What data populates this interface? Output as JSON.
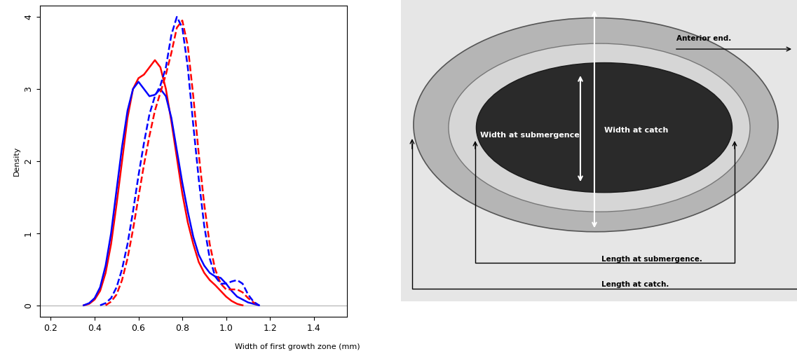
{
  "chart_data": {
    "type": "line",
    "x_label": "Width of first growth zone (mm)",
    "y_label": "Density",
    "x": [
      0.35,
      0.375,
      0.4,
      0.425,
      0.45,
      0.475,
      0.5,
      0.525,
      0.55,
      0.575,
      0.6,
      0.625,
      0.65,
      0.675,
      0.7,
      0.725,
      0.75,
      0.775,
      0.8,
      0.825,
      0.85,
      0.875,
      0.9,
      0.925,
      0.95,
      0.975,
      1.0,
      1.025,
      1.05,
      1.075,
      1.1,
      1.125,
      1.15
    ],
    "series": [
      {
        "color": "#ff0000",
        "line_style": "solid",
        "values": [
          0,
          0.02,
          0.08,
          0.2,
          0.45,
          0.85,
          1.4,
          2.0,
          2.6,
          3.0,
          3.15,
          3.2,
          3.3,
          3.4,
          3.3,
          3.0,
          2.55,
          2.05,
          1.55,
          1.15,
          0.85,
          0.6,
          0.45,
          0.35,
          0.28,
          0.2,
          0.12,
          0.06,
          0.02,
          0.0,
          null,
          null,
          null
        ]
      },
      {
        "color": "#0000ff",
        "line_style": "solid",
        "values": [
          0,
          0.03,
          0.1,
          0.25,
          0.55,
          1.0,
          1.6,
          2.2,
          2.7,
          3.0,
          3.1,
          3.0,
          2.9,
          2.92,
          3.0,
          2.9,
          2.6,
          2.15,
          1.7,
          1.3,
          0.95,
          0.7,
          0.55,
          0.45,
          0.4,
          0.38,
          0.3,
          0.2,
          0.12,
          0.08,
          0.04,
          0.02,
          0.0
        ]
      },
      {
        "color": "#ff0000",
        "line_style": "dashed",
        "values": [
          null,
          null,
          null,
          null,
          0,
          0.05,
          0.15,
          0.35,
          0.65,
          1.05,
          1.5,
          1.95,
          2.35,
          2.7,
          2.95,
          3.2,
          3.5,
          3.85,
          3.95,
          3.6,
          2.9,
          2.1,
          1.4,
          0.85,
          0.5,
          0.3,
          0.22,
          0.22,
          0.22,
          0.18,
          0.1,
          0.04,
          0.0
        ]
      },
      {
        "color": "#0000ff",
        "line_style": "dashed",
        "values": [
          null,
          null,
          null,
          0,
          0.03,
          0.1,
          0.25,
          0.5,
          0.85,
          1.3,
          1.8,
          2.25,
          2.65,
          2.9,
          3.05,
          3.3,
          3.75,
          4.0,
          3.85,
          3.3,
          2.5,
          1.75,
          1.1,
          0.65,
          0.4,
          0.3,
          0.3,
          0.33,
          0.35,
          0.3,
          0.15,
          0.05,
          0.0
        ]
      }
    ],
    "xlim": [
      0.15,
      1.55
    ],
    "ylim": [
      -0.16,
      4.16
    ],
    "xticks": [
      0.2,
      0.4,
      0.6,
      0.8,
      1.0,
      1.2,
      1.4
    ],
    "yticks": [
      0,
      1,
      2,
      3,
      4
    ]
  },
  "otolith_image": {
    "width_labels": [
      "Width at submergence",
      "Width at catch"
    ],
    "length_labels": [
      "Length at submergence.",
      "Length at catch."
    ],
    "orientation_label": "Anterior end."
  }
}
